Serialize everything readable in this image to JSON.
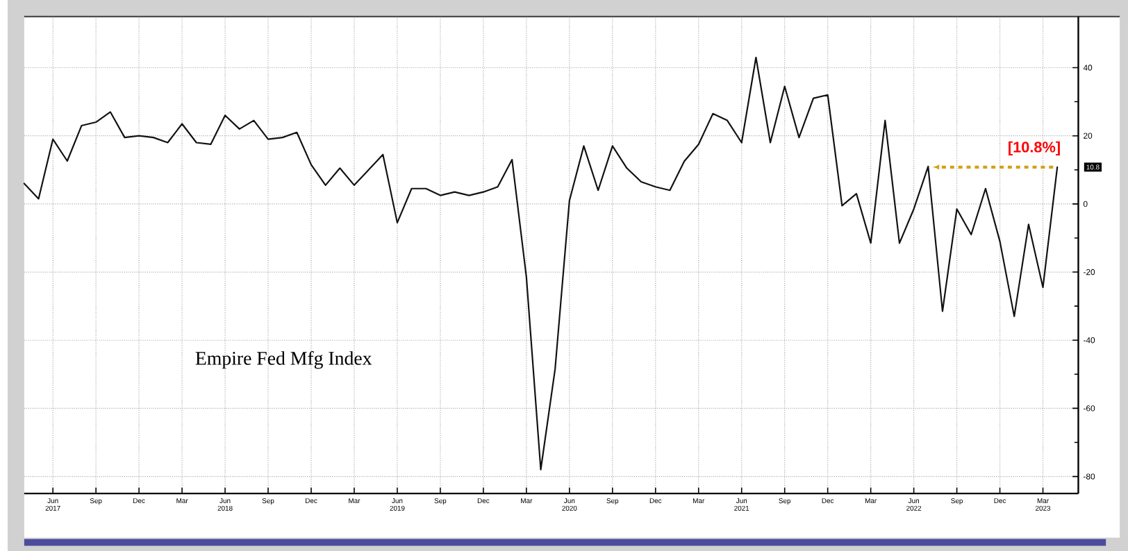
{
  "chart_data": {
    "type": "line",
    "title": "Empire Fed Mfg Index",
    "x": [
      "2017-04",
      "2017-05",
      "2017-06",
      "2017-07",
      "2017-08",
      "2017-09",
      "2017-10",
      "2017-11",
      "2017-12",
      "2018-01",
      "2018-02",
      "2018-03",
      "2018-04",
      "2018-05",
      "2018-06",
      "2018-07",
      "2018-08",
      "2018-09",
      "2018-10",
      "2018-11",
      "2018-12",
      "2019-01",
      "2019-02",
      "2019-03",
      "2019-04",
      "2019-05",
      "2019-06",
      "2019-07",
      "2019-08",
      "2019-09",
      "2019-10",
      "2019-11",
      "2019-12",
      "2020-01",
      "2020-02",
      "2020-03",
      "2020-04",
      "2020-05",
      "2020-06",
      "2020-07",
      "2020-08",
      "2020-09",
      "2020-10",
      "2020-11",
      "2020-12",
      "2021-01",
      "2021-02",
      "2021-03",
      "2021-04",
      "2021-05",
      "2021-06",
      "2021-07",
      "2021-08",
      "2021-09",
      "2021-10",
      "2021-11",
      "2021-12",
      "2022-01",
      "2022-02",
      "2022-03",
      "2022-04",
      "2022-05",
      "2022-06",
      "2022-07",
      "2022-08",
      "2022-09",
      "2022-10",
      "2022-11",
      "2022-12",
      "2023-01",
      "2023-02",
      "2023-03",
      "2023-04"
    ],
    "series": [
      {
        "color": "#111111",
        "values": [
          6,
          1.5,
          19,
          12.6,
          23,
          24,
          27,
          19.5,
          20,
          19.5,
          18,
          23.5,
          18,
          17.5,
          26,
          22,
          24.5,
          19,
          19.5,
          21,
          11.5,
          5.5,
          10.5,
          5.5,
          10,
          14.5,
          -5.5,
          4.5,
          4.5,
          2.5,
          3.5,
          2.5,
          3.5,
          5,
          13,
          -21.5,
          -78,
          -48.5,
          1,
          17,
          4,
          17,
          10.5,
          6.5,
          5,
          4,
          12.5,
          17.5,
          26.5,
          24.5,
          18,
          43,
          18,
          34.5,
          19.5,
          31,
          32,
          -0.5,
          3,
          -11.5,
          24.5,
          -11.5,
          -1.5,
          11,
          -31.5,
          -1.5,
          -9,
          4.5,
          -11,
          -33,
          -6,
          -24.5,
          10.8
        ]
      }
    ],
    "xlim": [
      "2017-04",
      "2023-05-15"
    ],
    "ylim": [
      -85,
      55
    ],
    "yticks": [
      -80,
      -60,
      -40,
      -20,
      0,
      20,
      40
    ],
    "xticks": [
      {
        "value": "2017-06",
        "label": "Jun 2017"
      },
      {
        "value": "2017-09",
        "label": "Sep"
      },
      {
        "value": "2017-12",
        "label": "Dec"
      },
      {
        "value": "2018-03",
        "label": "Mar"
      },
      {
        "value": "2018-06",
        "label": "Jun 2018"
      },
      {
        "value": "2018-09",
        "label": "Sep"
      },
      {
        "value": "2018-12",
        "label": "Dec"
      },
      {
        "value": "2019-03",
        "label": "Mar"
      },
      {
        "value": "2019-06",
        "label": "Jun 2019"
      },
      {
        "value": "2019-09",
        "label": "Sep"
      },
      {
        "value": "2019-12",
        "label": "Dec"
      },
      {
        "value": "2020-03",
        "label": "Mar"
      },
      {
        "value": "2020-06",
        "label": "Jun 2020"
      },
      {
        "value": "2020-09",
        "label": "Sep"
      },
      {
        "value": "2020-12",
        "label": "Dec"
      },
      {
        "value": "2021-03",
        "label": "Mar"
      },
      {
        "value": "2021-06",
        "label": "Jun 2021"
      },
      {
        "value": "2021-09",
        "label": "Sep"
      },
      {
        "value": "2021-12",
        "label": "Dec"
      },
      {
        "value": "2022-03",
        "label": "Mar"
      },
      {
        "value": "2022-06",
        "label": "Jun 2022"
      },
      {
        "value": "2022-09",
        "label": "Sep"
      },
      {
        "value": "2022-12",
        "label": "Dec"
      },
      {
        "value": "2023-03",
        "label": "Mar 2023"
      }
    ],
    "grid": true,
    "annotations": [
      {
        "text": "[10.8%]",
        "x": "2023-04",
        "y": 10.8
      },
      "10.8"
    ]
  }
}
